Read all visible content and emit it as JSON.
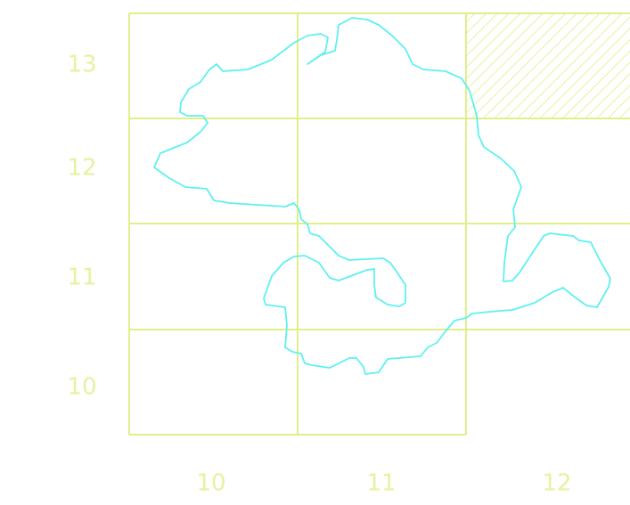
{
  "row_labels": [
    "13",
    "12",
    "11",
    "10"
  ],
  "column_labels": [
    "10",
    "11",
    "12"
  ]
}
